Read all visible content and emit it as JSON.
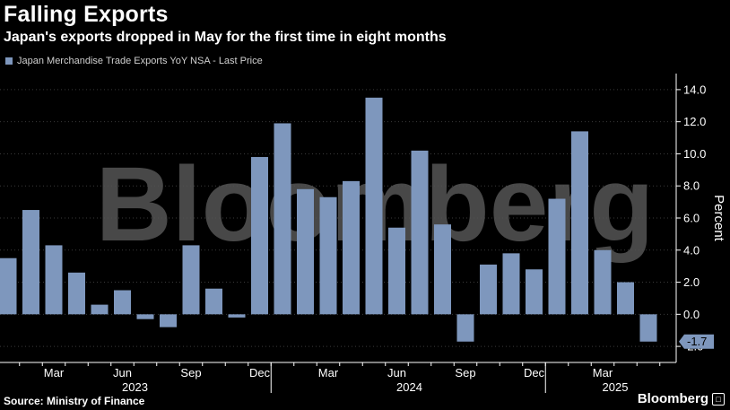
{
  "header": {
    "title": "Falling Exports",
    "subtitle": "Japan's exports dropped in May for the first time in eight months"
  },
  "footer": {
    "source": "Source: Ministry of Finance",
    "brand": "Bloomberg"
  },
  "watermark": "Bloomberg",
  "colors": {
    "background": "#000000",
    "bar": "#7e97bd",
    "grid": "#3a3a3a",
    "axis": "#ffffff",
    "watermark": "#555555",
    "last_label_bg": "#7e97bd"
  },
  "chart_data": {
    "type": "bar",
    "title": "Falling Exports",
    "ylabel": "Percent",
    "ylim": [
      -3,
      15
    ],
    "yticks": [
      14.0,
      12.0,
      10.0,
      8.0,
      6.0,
      4.0,
      2.0,
      0.0,
      -2.0
    ],
    "ytick_labels": [
      "14.0",
      "12.0",
      "10.0",
      "8.0",
      "6.0",
      "4.0",
      "2.0",
      "0.0",
      "-2.0"
    ],
    "y_axis_side": "right",
    "grid": "horizontal",
    "legend_position": "top-left",
    "series": [
      {
        "name": "Japan Merchandise Trade Exports YoY NSA - Last Price",
        "categories": [
          "2023-01",
          "2023-02",
          "2023-03",
          "2023-04",
          "2023-05",
          "2023-06",
          "2023-07",
          "2023-08",
          "2023-09",
          "2023-10",
          "2023-11",
          "2023-12",
          "2024-01",
          "2024-02",
          "2024-03",
          "2024-04",
          "2024-05",
          "2024-06",
          "2024-07",
          "2024-08",
          "2024-09",
          "2024-10",
          "2024-11",
          "2024-12",
          "2025-01",
          "2025-02",
          "2025-03",
          "2025-04",
          "2025-05"
        ],
        "values": [
          3.5,
          6.5,
          4.3,
          2.6,
          0.6,
          1.5,
          -0.3,
          -0.8,
          4.3,
          1.6,
          -0.2,
          9.8,
          11.9,
          7.8,
          7.3,
          8.3,
          13.5,
          5.4,
          10.2,
          5.6,
          -1.7,
          3.1,
          3.8,
          2.8,
          7.2,
          11.4,
          4.0,
          2.0,
          -1.7
        ]
      }
    ],
    "x_tick_labels": [
      "Mar",
      "Jun",
      "Sep",
      "Dec",
      "Mar",
      "Jun",
      "Sep",
      "Dec",
      "Mar"
    ],
    "x_tick_categories": [
      "2023-03",
      "2023-06",
      "2023-09",
      "2023-12",
      "2024-03",
      "2024-06",
      "2024-09",
      "2024-12",
      "2025-03"
    ],
    "x_year_labels": [
      "2023",
      "2024",
      "2025"
    ],
    "x_year_categories": [
      "2023-06",
      "2024-06",
      "2025-03"
    ],
    "last_value_label": "-1.7"
  }
}
